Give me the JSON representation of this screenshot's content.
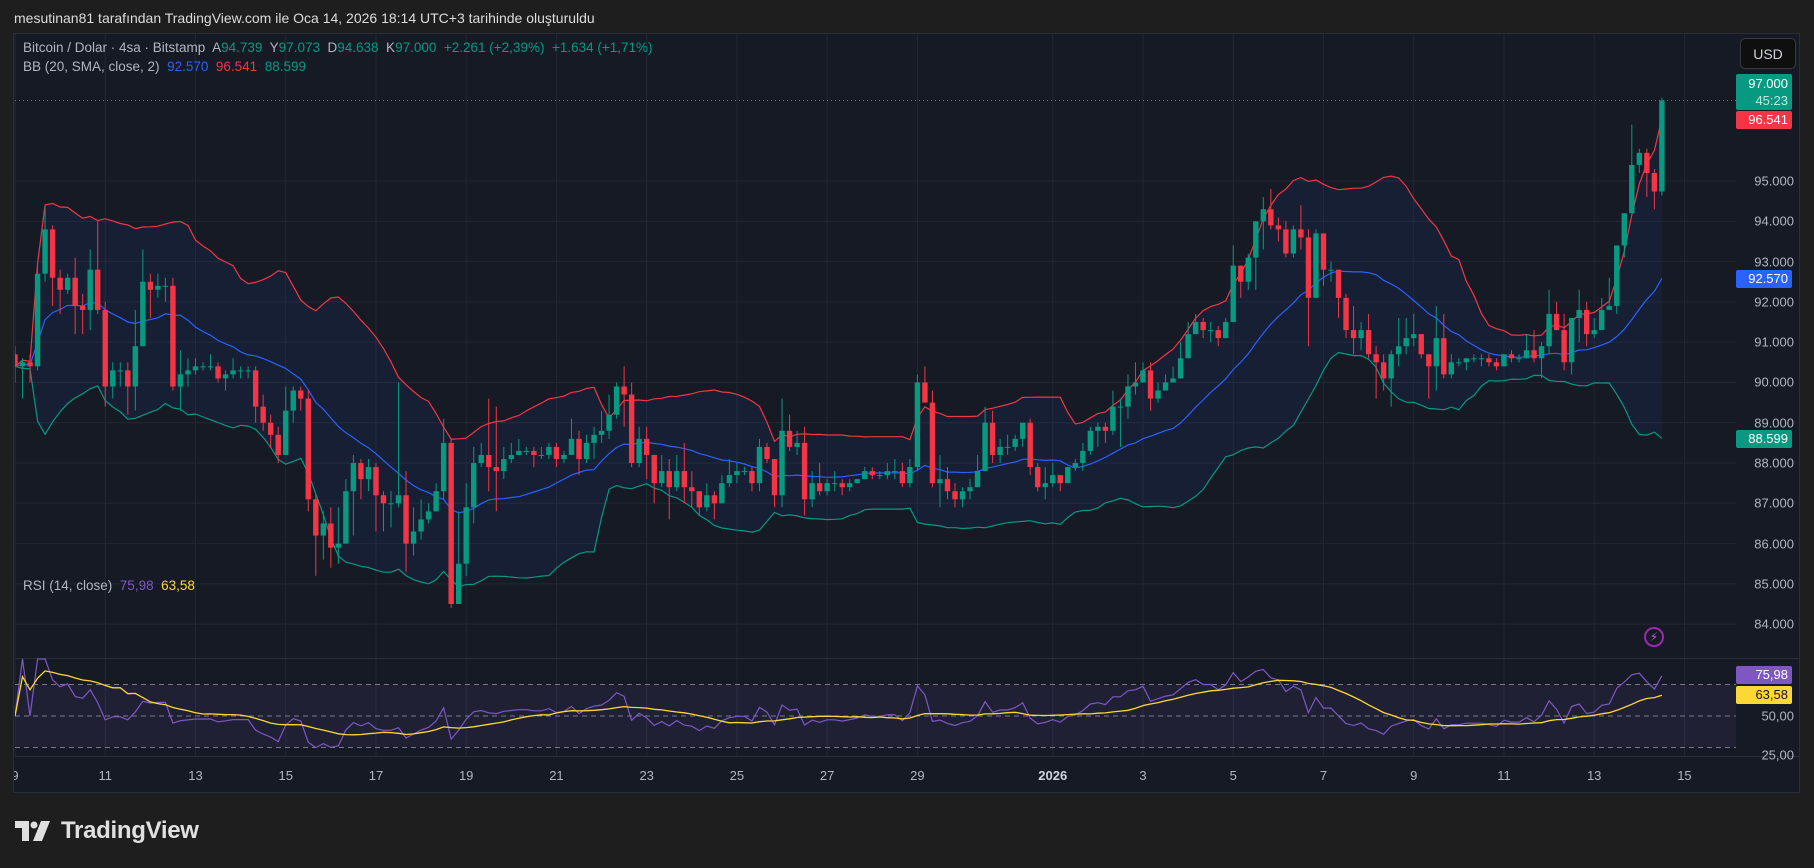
{
  "header": {
    "attribution": "mesutinan81 tarafından TradingView.com ile Oca 14, 2026 18:14 UTC+3 tarihinde oluşturuldu"
  },
  "legend": {
    "symbol": "Bitcoin / Dolar · 4sa · Bitstamp",
    "o_label": "A",
    "o": "94.739",
    "h_label": "Y",
    "h": "97.073",
    "l_label": "D",
    "l": "94.638",
    "c_label": "K",
    "c": "97.000",
    "change": "+2.261 (+2,39%)",
    "change2": "+1.634 (+1,71%)"
  },
  "bb": {
    "label": "BB (20, SMA, close, 2)",
    "basis": "92.570",
    "upper": "96.541",
    "lower": "88.599"
  },
  "rsi": {
    "label": "RSI (14, close)",
    "value": "75,98",
    "ma": "63,58"
  },
  "currency_button": "USD",
  "price_axis": {
    "last_price": "97.000",
    "countdown": "45:23",
    "ticks": [
      "95.000",
      "94.000",
      "93.000",
      "92.000",
      "91.000",
      "90.000",
      "89.000",
      "88.000",
      "87.000",
      "86.000",
      "85.000",
      "84.000"
    ]
  },
  "rsi_axis": {
    "ticks": [
      "50,00",
      "25,00"
    ]
  },
  "time_axis": {
    "labels": [
      {
        "text": "9",
        "date": "2025-12-09"
      },
      {
        "text": "11",
        "date": "2025-12-11"
      },
      {
        "text": "13",
        "date": "2025-12-13"
      },
      {
        "text": "15",
        "date": "2025-12-15"
      },
      {
        "text": "17",
        "date": "2025-12-17"
      },
      {
        "text": "19",
        "date": "2025-12-19"
      },
      {
        "text": "21",
        "date": "2025-12-21"
      },
      {
        "text": "23",
        "date": "2025-12-23"
      },
      {
        "text": "25",
        "date": "2025-12-25"
      },
      {
        "text": "27",
        "date": "2025-12-27"
      },
      {
        "text": "29",
        "date": "2025-12-29"
      },
      {
        "text": "2026",
        "date": "2026-01-01",
        "bold": true
      },
      {
        "text": "3",
        "date": "2026-01-03"
      },
      {
        "text": "5",
        "date": "2026-01-05"
      },
      {
        "text": "7",
        "date": "2026-01-07"
      },
      {
        "text": "9",
        "date": "2026-01-09"
      },
      {
        "text": "11",
        "date": "2026-01-11"
      },
      {
        "text": "13",
        "date": "2026-01-13"
      },
      {
        "text": "15",
        "date": "2026-01-15"
      }
    ]
  },
  "icons": {
    "alert": "lightning-icon",
    "logo": "tradingview-logo-icon"
  },
  "branding": "TradingView",
  "colors": {
    "up": "#089981",
    "down": "#f23645",
    "bb_basis": "#2962ff",
    "bb_upper": "#f23645",
    "bb_lower": "#089981",
    "rsi": "#7e57c2",
    "rsi_ma": "#fdd835",
    "background": "#161a25",
    "grid": "#232733"
  },
  "chart_data": {
    "type": "candlestick",
    "symbol": "BTC/USD",
    "interval_hours": 4,
    "first_time": "2025-12-09T00:00",
    "ylim": [
      83.16,
      98.65
    ],
    "rsi_ylim": [
      24.6,
      86.2
    ],
    "rsi_levels": [
      70,
      50,
      30
    ],
    "bb_period": 20,
    "bb_mult": 2,
    "rsi_period": 14,
    "rsi_ma_period": 14,
    "first_open": 90.7,
    "close": [
      90.4,
      90.5,
      90.4,
      92.7,
      93.8,
      92.6,
      92.3,
      92.6,
      91.9,
      91.8,
      92.8,
      91.8,
      89.9,
      90.3,
      90.3,
      89.9,
      90.9,
      92.5,
      92.3,
      92.4,
      92.4,
      89.9,
      90.2,
      90.3,
      90.4,
      90.4,
      90.4,
      90.1,
      90.2,
      90.3,
      90.3,
      90.3,
      89.4,
      89.0,
      88.7,
      88.2,
      89.3,
      89.8,
      89.6,
      87.1,
      86.2,
      86.5,
      85.9,
      86.0,
      87.3,
      88.0,
      87.6,
      87.9,
      87.2,
      87.0,
      87.0,
      87.2,
      86.0,
      86.3,
      86.6,
      86.8,
      87.3,
      88.5,
      84.5,
      85.5,
      86.9,
      88.0,
      88.2,
      87.9,
      87.8,
      88.1,
      88.2,
      88.3,
      88.3,
      88.2,
      88.2,
      88.4,
      88.1,
      88.2,
      88.6,
      88.1,
      88.5,
      88.7,
      88.8,
      89.2,
      89.9,
      89.7,
      88.0,
      88.6,
      88.2,
      87.5,
      87.8,
      87.4,
      87.8,
      87.4,
      87.3,
      86.9,
      87.2,
      87.0,
      87.5,
      87.7,
      87.8,
      87.8,
      87.5,
      88.4,
      88.1,
      87.2,
      88.8,
      88.4,
      88.5,
      87.1,
      87.5,
      87.3,
      87.5,
      87.5,
      87.4,
      87.5,
      87.6,
      87.8,
      87.7,
      87.7,
      87.8,
      87.8,
      87.5,
      87.9,
      90.0,
      89.5,
      87.5,
      87.6,
      87.3,
      87.1,
      87.3,
      87.4,
      87.8,
      89.0,
      88.2,
      88.4,
      88.4,
      88.6,
      89.0,
      87.9,
      87.4,
      87.5,
      87.7,
      87.5,
      87.9,
      88.0,
      88.3,
      88.8,
      88.9,
      88.8,
      89.4,
      89.4,
      89.9,
      90.0,
      90.3,
      89.6,
      89.8,
      90.0,
      90.1,
      90.6,
      91.2,
      91.5,
      91.3,
      91.3,
      91.1,
      91.5,
      92.9,
      92.5,
      93.1,
      94.0,
      94.3,
      93.9,
      93.8,
      93.2,
      93.8,
      93.6,
      92.1,
      93.7,
      92.8,
      92.8,
      92.1,
      91.3,
      91.1,
      91.3,
      90.7,
      90.5,
      90.1,
      90.7,
      90.9,
      91.1,
      91.2,
      90.7,
      90.4,
      91.1,
      90.2,
      90.5,
      90.5,
      90.6,
      90.6,
      90.6,
      90.5,
      90.4,
      90.7,
      90.6,
      90.6,
      90.8,
      90.6,
      90.9,
      91.7,
      91.3,
      90.5,
      91.6,
      91.8,
      91.2,
      91.3,
      91.8,
      91.9,
      93.4,
      94.2,
      95.4,
      95.7,
      95.2,
      94.739,
      97.0
    ],
    "high": [
      90.9,
      90.6,
      90.7,
      92.9,
      94.4,
      93.9,
      92.8,
      92.7,
      93.1,
      92.2,
      93.3,
      94.0,
      92.0,
      90.5,
      90.5,
      90.5,
      91.8,
      93.3,
      92.7,
      92.7,
      92.6,
      92.6,
      90.8,
      90.6,
      90.6,
      90.5,
      90.7,
      90.5,
      90.3,
      90.6,
      90.4,
      90.4,
      90.4,
      89.7,
      89.2,
      88.9,
      89.9,
      89.9,
      89.9,
      89.8,
      87.2,
      86.8,
      86.9,
      86.9,
      87.6,
      88.2,
      88.1,
      88.1,
      88.0,
      87.3,
      87.3,
      90.0,
      87.8,
      86.9,
      87.1,
      87.0,
      87.5,
      89.1,
      88.6,
      86.8,
      87.5,
      88.4,
      88.5,
      89.6,
      89.4,
      88.4,
      88.5,
      88.6,
      88.4,
      88.4,
      88.4,
      88.5,
      88.5,
      88.3,
      89.1,
      88.8,
      88.7,
      88.9,
      89.3,
      89.7,
      90.0,
      90.4,
      90.0,
      88.9,
      88.9,
      88.0,
      88.2,
      88.1,
      88.2,
      88.5,
      87.8,
      87.3,
      87.5,
      87.3,
      87.7,
      88.1,
      88.0,
      87.9,
      87.9,
      88.6,
      88.5,
      88.1,
      89.6,
      89.2,
      88.8,
      88.9,
      87.8,
      88.0,
      87.6,
      87.8,
      87.6,
      87.6,
      87.6,
      87.9,
      87.9,
      87.8,
      88.0,
      88.1,
      88.0,
      88.1,
      90.2,
      90.4,
      89.8,
      88.2,
      87.9,
      87.5,
      87.4,
      87.6,
      88.2,
      89.4,
      89.3,
      88.6,
      88.7,
      88.7,
      89.0,
      89.1,
      88.0,
      87.9,
      88.0,
      87.7,
      87.9,
      88.1,
      88.5,
      88.9,
      89.0,
      89.0,
      89.8,
      89.6,
      90.2,
      90.5,
      90.5,
      90.5,
      90.0,
      90.2,
      90.4,
      91.0,
      91.5,
      91.7,
      91.6,
      91.5,
      91.4,
      91.6,
      93.4,
      92.9,
      93.2,
      94.0,
      94.6,
      94.8,
      94.1,
      94.0,
      93.9,
      94.4,
      93.8,
      93.8,
      93.7,
      93.0,
      92.8,
      92.2,
      91.9,
      91.5,
      91.7,
      90.9,
      90.7,
      90.8,
      91.6,
      91.6,
      91.7,
      91.2,
      90.7,
      91.9,
      91.7,
      90.7,
      90.6,
      90.6,
      90.7,
      90.7,
      90.7,
      90.6,
      90.7,
      90.8,
      90.7,
      91.2,
      91.3,
      91.0,
      92.3,
      92.0,
      91.7,
      91.6,
      92.3,
      92.0,
      91.6,
      92.1,
      92.6,
      93.4,
      94.2,
      96.4,
      95.8,
      95.8,
      95.3,
      97.073
    ],
    "low": [
      90.0,
      89.6,
      90.0,
      90.3,
      92.5,
      91.9,
      91.7,
      92.2,
      91.2,
      91.2,
      91.3,
      91.7,
      89.4,
      89.6,
      89.9,
      89.2,
      89.3,
      91.3,
      91.6,
      92.1,
      92.0,
      89.8,
      89.3,
      89.9,
      90.2,
      90.3,
      90.3,
      90.0,
      89.8,
      90.1,
      90.1,
      90.1,
      89.0,
      88.8,
      88.4,
      88.0,
      88.2,
      89.0,
      89.3,
      86.8,
      85.2,
      85.6,
      85.4,
      85.5,
      86.0,
      86.2,
      87.1,
      87.3,
      86.3,
      86.3,
      86.4,
      86.9,
      85.3,
      85.7,
      86.1,
      86.5,
      86.8,
      87.1,
      84.4,
      84.5,
      85.2,
      86.5,
      87.9,
      87.3,
      86.8,
      87.6,
      88.0,
      88.2,
      88.2,
      87.9,
      88.1,
      88.1,
      87.9,
      88.0,
      88.2,
      87.7,
      88.0,
      88.1,
      88.5,
      88.6,
      89.1,
      88.9,
      87.9,
      87.9,
      87.6,
      87.0,
      87.4,
      86.6,
      87.3,
      87.0,
      86.9,
      86.7,
      86.8,
      86.6,
      87.0,
      87.4,
      87.5,
      87.7,
      87.3,
      87.3,
      88.0,
      86.9,
      86.9,
      88.3,
      88.2,
      86.7,
      86.9,
      87.2,
      87.2,
      87.3,
      87.2,
      87.3,
      87.5,
      87.6,
      87.6,
      87.6,
      87.6,
      87.6,
      87.4,
      87.4,
      87.8,
      89.5,
      87.4,
      86.9,
      87.1,
      86.9,
      86.9,
      87.1,
      87.4,
      87.8,
      88.0,
      88.0,
      88.2,
      88.3,
      88.4,
      87.7,
      87.3,
      87.1,
      87.4,
      87.3,
      87.5,
      87.8,
      87.8,
      88.2,
      88.4,
      88.5,
      88.7,
      88.4,
      89.1,
      89.7,
      90.0,
      89.3,
      89.5,
      89.8,
      90.0,
      90.1,
      91.0,
      91.2,
      91.1,
      91.0,
      90.9,
      91.1,
      91.5,
      92.1,
      92.3,
      92.3,
      93.3,
      93.8,
      93.5,
      93.1,
      93.1,
      93.3,
      90.9,
      92.1,
      92.4,
      92.5,
      91.6,
      91.1,
      90.7,
      90.8,
      90.6,
      89.6,
      89.8,
      89.4,
      90.4,
      90.7,
      90.9,
      90.6,
      89.6,
      89.8,
      90.1,
      90.1,
      90.4,
      90.3,
      90.5,
      90.4,
      90.4,
      90.3,
      90.4,
      90.5,
      90.5,
      90.6,
      90.5,
      90.1,
      90.7,
      91.3,
      90.3,
      90.2,
      91.0,
      90.9,
      91.1,
      91.3,
      91.8,
      91.7,
      93.1,
      94.2,
      95.2,
      94.6,
      94.3,
      94.638
    ]
  }
}
